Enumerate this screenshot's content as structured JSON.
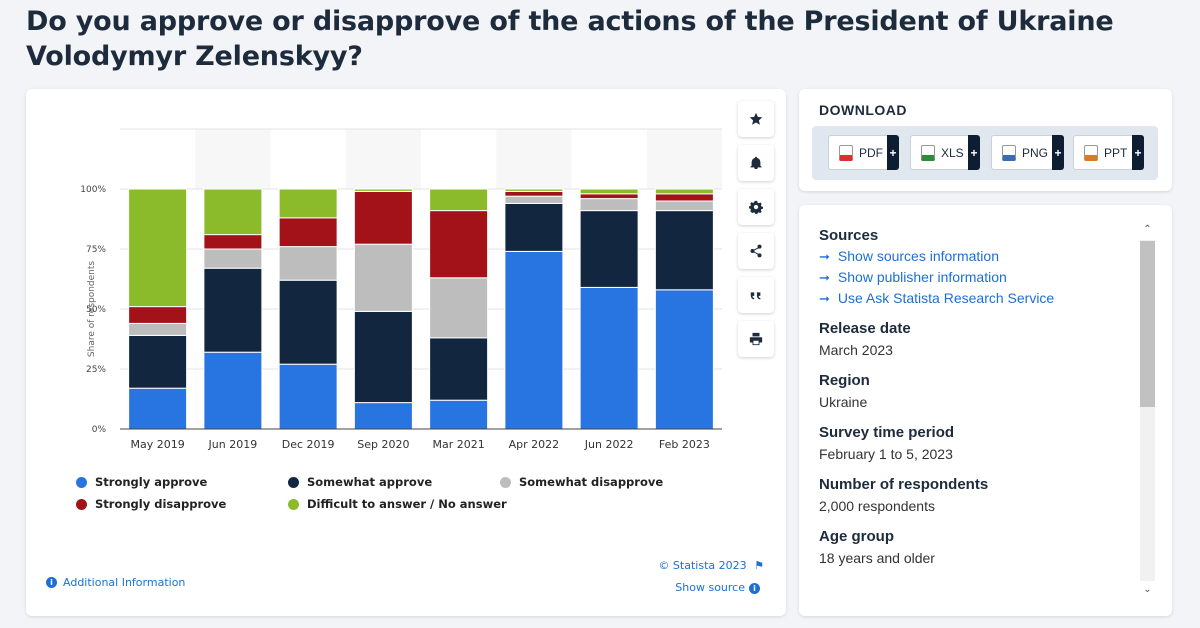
{
  "page": {
    "title": "Do you approve or disapprove of the actions of the President of Ukraine Volodymyr Zelenskyy?"
  },
  "toolbar": {
    "icons": [
      "star-icon",
      "bell-icon",
      "gear-icon",
      "share-icon",
      "quote-icon",
      "print-icon"
    ]
  },
  "footer": {
    "copyright": "© Statista 2023",
    "show_source": "Show source",
    "additional_info": "Additional Information"
  },
  "download": {
    "title": "DOWNLOAD",
    "buttons": [
      {
        "label": "PDF",
        "color": "#d9302a"
      },
      {
        "label": "XLS",
        "color": "#2e8b3a"
      },
      {
        "label": "PNG",
        "color": "#3a6bb5"
      },
      {
        "label": "PPT",
        "color": "#e07a22"
      }
    ]
  },
  "info": {
    "sources_title": "Sources",
    "source_links": [
      "Show sources information",
      "Show publisher information",
      "Use Ask Statista Research Service"
    ],
    "release_date_title": "Release date",
    "release_date": "March 2023",
    "region_title": "Region",
    "region": "Ukraine",
    "survey_period_title": "Survey time period",
    "survey_period": "February 1 to 5, 2023",
    "respondents_title": "Number of respondents",
    "respondents": "2,000 respondents",
    "age_group_title": "Age group",
    "age_group": "18 years and older"
  },
  "chart_data": {
    "type": "bar",
    "stacked": true,
    "title": "",
    "xlabel": "",
    "ylabel": "Share of respondents",
    "ylim": [
      0,
      100
    ],
    "y_ticks": [
      "0%",
      "25%",
      "50%",
      "75%",
      "100%"
    ],
    "grid": true,
    "legend_position": "bottom",
    "categories": [
      "May 2019",
      "Jun 2019",
      "Dec 2019",
      "Sep 2020",
      "Mar 2021",
      "Apr 2022",
      "Jun 2022",
      "Feb 2023"
    ],
    "series": [
      {
        "name": "Strongly approve",
        "color": "#2874e0",
        "values": [
          17,
          32,
          27,
          11,
          12,
          74,
          59,
          58
        ]
      },
      {
        "name": "Somewhat approve",
        "color": "#13263f",
        "values": [
          22,
          35,
          35,
          38,
          26,
          20,
          32,
          33
        ]
      },
      {
        "name": "Somewhat disapprove",
        "color": "#bdbdbd",
        "values": [
          5,
          8,
          14,
          28,
          25,
          3,
          5,
          4
        ]
      },
      {
        "name": "Strongly disapprove",
        "color": "#a31219",
        "values": [
          7,
          6,
          12,
          22,
          28,
          2,
          2,
          3
        ]
      },
      {
        "name": "Difficult to answer / No answer",
        "color": "#8bbb2a",
        "values": [
          49,
          19,
          12,
          1,
          9,
          1,
          2,
          2
        ]
      }
    ]
  }
}
